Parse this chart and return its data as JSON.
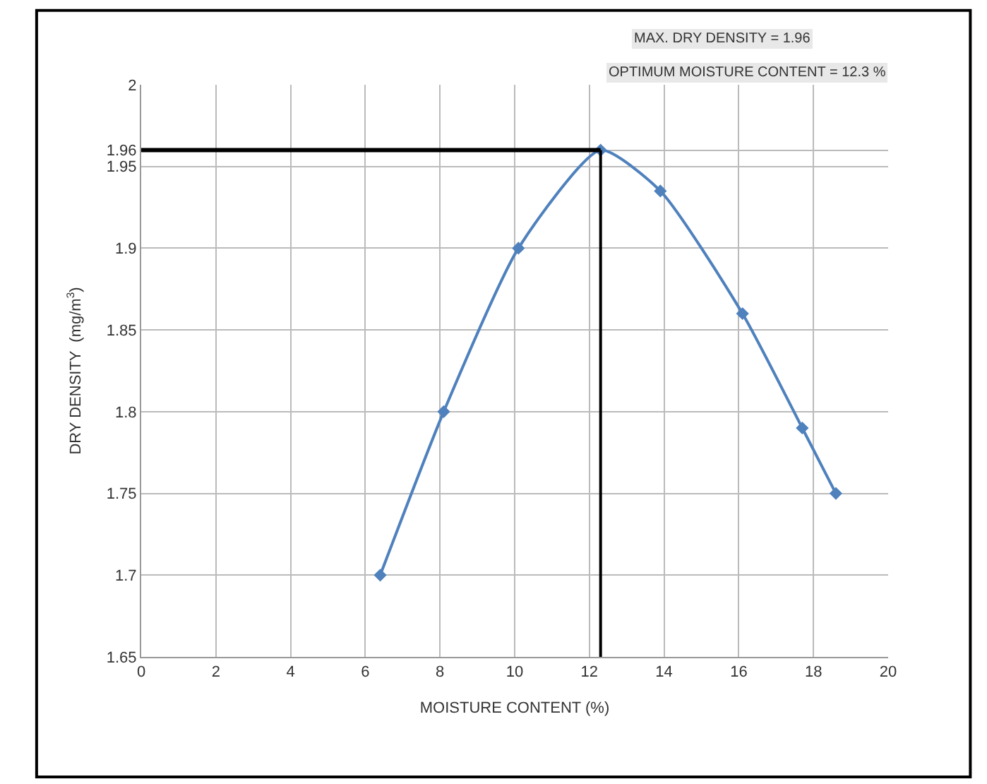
{
  "chart_data": {
    "type": "line",
    "xlabel": "MOISTURE CONTENT (%)",
    "ylabel": "DRY DENSITY  (mg/m$^{3}$)",
    "annotations": [
      "MAX. DRY DENSITY = 1.96",
      "OPTIMUM MOISTURE CONTENT = 12.3 %"
    ],
    "series": [
      {
        "color": "#4f81bd",
        "x": [
          6.4,
          8.1,
          10.1,
          12.3,
          13.9,
          16.1,
          17.7,
          18.6
        ],
        "values": [
          1.7,
          1.8,
          1.9,
          1.96,
          1.935,
          1.86,
          1.79,
          1.75
        ]
      }
    ],
    "xlim": [
      0,
      20
    ],
    "xticks": [
      0,
      2,
      4,
      6,
      8,
      10,
      12,
      14,
      16,
      18,
      20
    ],
    "ylim": [
      1.65,
      2
    ],
    "yticks": [
      1.65,
      1.7,
      1.75,
      1.8,
      1.85,
      1.9,
      1.95,
      1.96,
      2
    ],
    "ref_lines": [
      {
        "axis": "y",
        "value": 1.96,
        "color": "#000000"
      },
      {
        "axis": "x",
        "value": 12.3,
        "color": "#000000"
      }
    ],
    "grid": true,
    "marker": "diamond",
    "line_style": "solid",
    "legend": false
  }
}
